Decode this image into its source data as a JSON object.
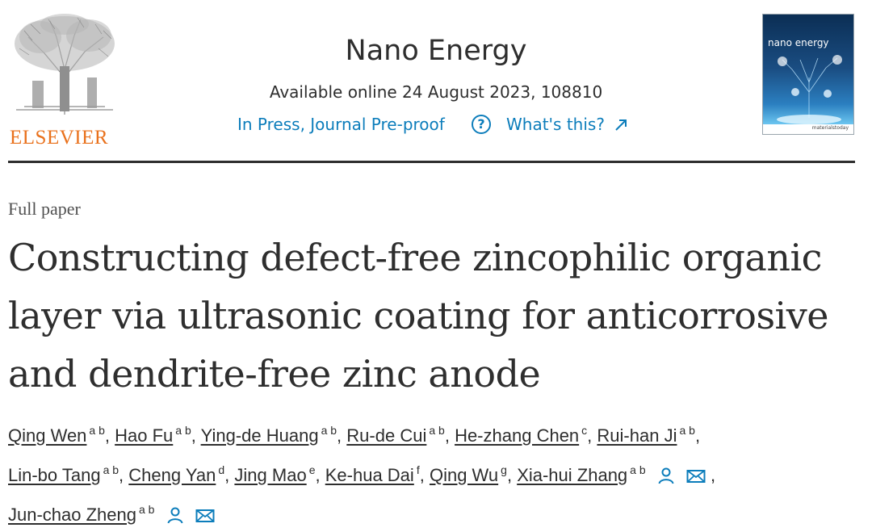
{
  "publisher": {
    "name": "ELSEVIER",
    "logo_icon": "elsevier-tree-icon"
  },
  "journal": {
    "name": "Nano Energy",
    "availability": "Available online 24 August 2023, 108810",
    "status": "In Press, Journal Pre-proof",
    "whats_this": "What's this?",
    "help_icon": "help-circle-icon",
    "external_icon": "external-link-icon",
    "cover_title": "nano energy",
    "cover_footer": "materialstoday",
    "accent_color": "#0c7dbb",
    "publisher_color": "#e9711c"
  },
  "article": {
    "type": "Full paper",
    "title_lines": [
      "Constructing defect-free zincophilic organic",
      "layer via ultrasonic coating for anticorrosive",
      "and dendrite-free zinc anode"
    ]
  },
  "authors": [
    {
      "name": "Qing Wen",
      "aff": "a b"
    },
    {
      "name": "Hao Fu",
      "aff": "a b"
    },
    {
      "name": "Ying-de Huang",
      "aff": "a b"
    },
    {
      "name": "Ru-de Cui",
      "aff": "a b"
    },
    {
      "name": "He-zhang Chen",
      "aff": "c"
    },
    {
      "name": "Rui-han Ji",
      "aff": "a b"
    },
    {
      "name": "Lin-bo Tang",
      "aff": "a b"
    },
    {
      "name": "Cheng Yan",
      "aff": "d"
    },
    {
      "name": "Jing Mao",
      "aff": "e"
    },
    {
      "name": "Ke-hua Dai",
      "aff": "f"
    },
    {
      "name": "Qing Wu",
      "aff": "g"
    },
    {
      "name": "Xia-hui Zhang",
      "aff": "a b",
      "icons": [
        "person-icon",
        "mail-icon"
      ]
    },
    {
      "name": "Jun-chao Zheng",
      "aff": "a b",
      "icons": [
        "person-icon",
        "mail-icon"
      ]
    }
  ],
  "punctuation": {
    "separator": ",",
    "chem": ""
  }
}
